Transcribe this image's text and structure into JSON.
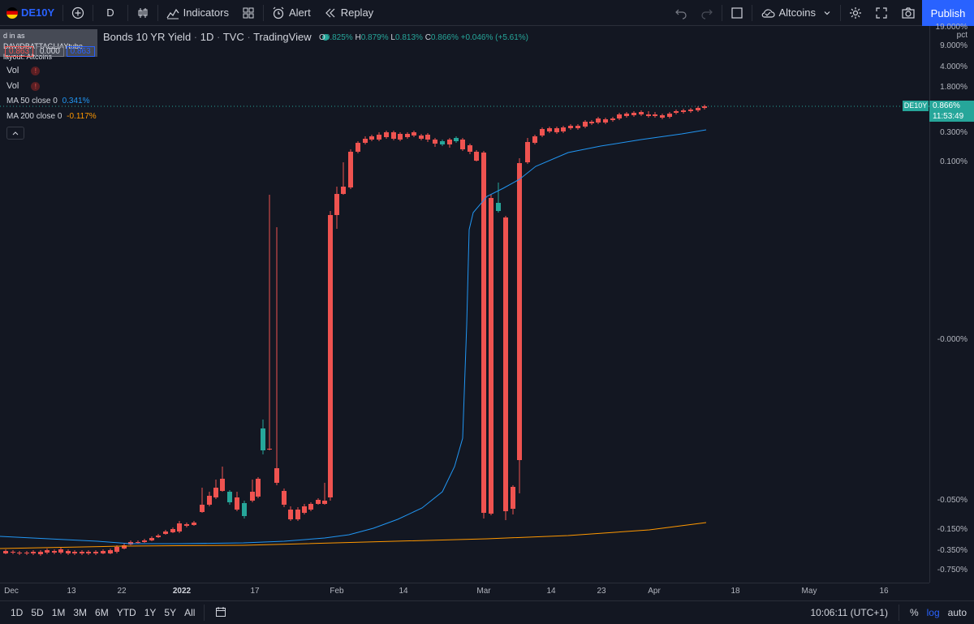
{
  "toolbar": {
    "symbol": "DE10Y",
    "interval": "D",
    "indicators_label": "Indicators",
    "alert_label": "Alert",
    "replay_label": "Replay",
    "layout_name": "Altcoins",
    "publish_label": "Publish"
  },
  "legend": {
    "title": "Bonds 10 YR Yield",
    "interval": "1D",
    "source": "TVC",
    "provider": "TradingView",
    "ohlc": {
      "o": "0.825%",
      "h": "0.879%",
      "l": "0.813%",
      "c": "0.866%",
      "change": "+0.046% (+5.61%)"
    },
    "price_boxes": [
      "0.863",
      "0.000",
      "0.863"
    ],
    "vol1": "Vol",
    "vol2": "Vol",
    "ma50_label": "MA 50 close 0",
    "ma50_value": "0.341%",
    "ma200_label": "MA 200 close 0",
    "ma200_value": "-0.117%"
  },
  "tooltip": {
    "line1": "d in as DAVIDBATTAGLIAYtube",
    "line2": "layout: Altcoins"
  },
  "price_axis": {
    "unit": "pct",
    "ticks": [
      "19.000%",
      "9.000%",
      "4.000%",
      "1.800%",
      "0.300%",
      "0.100%",
      "-0.000%",
      "-0.050%",
      "-0.150%",
      "-0.350%",
      "-0.750%"
    ],
    "last_label": "DE10Y",
    "last_value": "0.866%",
    "countdown": "11:53:49"
  },
  "time_axis": {
    "ticks": [
      "Dec",
      "13",
      "22",
      "2022",
      "17",
      "Feb",
      "14",
      "Mar",
      "14",
      "23",
      "Apr",
      "18",
      "May",
      "16"
    ]
  },
  "bottom_bar": {
    "ranges": [
      "1D",
      "5D",
      "1M",
      "3M",
      "6M",
      "YTD",
      "1Y",
      "5Y",
      "All"
    ],
    "clock": "10:06:11 (UTC+1)",
    "percent": "%",
    "log": "log",
    "auto": "auto"
  },
  "colors": {
    "up": "#26a69a",
    "down": "#ef5350",
    "ma50": "#2196f3",
    "ma200": "#ff9800",
    "accent": "#2962ff",
    "bg": "#131722"
  },
  "chart_data": {
    "type": "candlestick",
    "title": "Bonds 10 YR Yield",
    "scale": "log",
    "ylabel": "pct",
    "x_categories": [
      "Dec",
      "13",
      "22",
      "2022",
      "17",
      "Feb",
      "14",
      "Mar",
      "14",
      "23",
      "Apr"
    ],
    "series": [
      {
        "name": "Bonds 10 YR Yield",
        "last": 0.866
      },
      {
        "name": "MA 50 close 0",
        "last": 0.341
      },
      {
        "name": "MA 200 close 0",
        "last": -0.117
      }
    ]
  }
}
